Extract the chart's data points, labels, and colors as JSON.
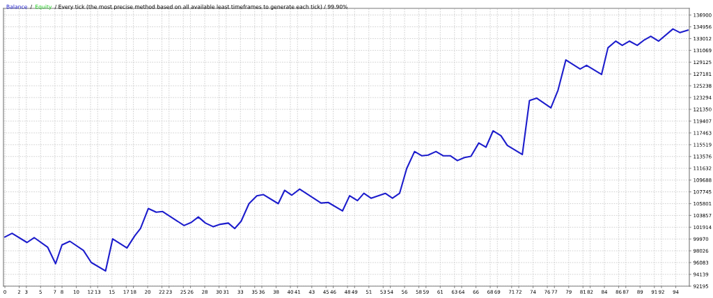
{
  "chart_data": {
    "type": "line",
    "title": "/ Every tick (the most precise method based on all available least timeframes to generate each tick) / 99.90%",
    "annotations": [
      "/"
    ],
    "x": [
      0.0,
      1.0,
      3.1,
      4.1,
      6.0,
      7.1,
      8.0,
      9.1,
      11.0,
      12.1,
      14.1,
      15.1,
      17.1,
      18.2,
      19.0,
      20.1,
      21.2,
      22.1,
      25.1,
      26.1,
      27.1,
      28.1,
      29.2,
      30.2,
      31.3,
      32.2,
      33.1,
      34.2,
      35.3,
      36.2,
      38.3,
      39.2,
      40.2,
      41.3,
      44.3,
      45.3,
      47.3,
      48.3,
      49.4,
      50.3,
      51.3,
      53.3,
      54.3,
      55.3,
      56.3,
      57.4,
      58.4,
      59.3,
      60.4,
      61.4,
      62.4,
      63.4,
      64.4,
      65.3,
      66.4,
      67.4,
      68.4,
      69.5,
      70.4,
      72.5,
      73.5,
      74.5,
      76.5,
      77.5,
      78.6,
      80.6,
      81.5,
      83.6,
      84.5,
      85.6,
      86.5,
      87.5,
      88.6,
      89.6,
      90.5,
      91.6,
      93.6,
      94.6,
      95.7
    ],
    "series": [
      {
        "name": "Balance",
        "color": "#1c1ccc",
        "values": [
          100300,
          100900,
          99400,
          100200,
          98600,
          95900,
          99000,
          99600,
          98100,
          96100,
          94700,
          100000,
          98500,
          100500,
          101700,
          105000,
          104400,
          104500,
          102200,
          102700,
          103600,
          102600,
          102000,
          102400,
          102600,
          101700,
          102900,
          105800,
          107100,
          107300,
          105800,
          108000,
          107200,
          108200,
          105900,
          106000,
          104600,
          107100,
          106300,
          107500,
          106700,
          107500,
          106700,
          107500,
          111600,
          114400,
          113700,
          113800,
          114400,
          113700,
          113700,
          112900,
          113400,
          113600,
          115800,
          115100,
          117800,
          117000,
          115400,
          113900,
          122800,
          123200,
          121600,
          124500,
          129500,
          128000,
          128600,
          127100,
          131500,
          132600,
          131900,
          132600,
          131900,
          132800,
          133400,
          132600,
          134600,
          134000,
          134400
        ]
      },
      {
        "name": "Equity",
        "color": "#22cc22",
        "values": [
          null,
          null,
          null,
          null,
          null,
          null,
          null,
          null,
          null,
          null,
          null,
          null,
          null,
          null,
          null,
          null,
          null,
          null,
          null,
          null,
          null,
          null,
          null,
          null,
          null,
          null,
          null,
          null,
          null,
          null,
          null,
          null,
          null,
          null,
          null,
          null,
          null,
          null,
          null,
          null,
          null,
          null,
          null,
          null,
          null,
          null,
          null,
          null,
          null,
          null,
          null,
          null,
          null,
          null,
          null,
          null,
          null,
          null,
          null,
          null,
          null,
          null,
          null,
          null,
          null,
          null,
          null,
          null,
          null,
          null,
          null,
          null,
          null,
          null,
          null,
          null,
          null,
          null,
          null
        ]
      }
    ],
    "xlim": [
      -0.2,
      95.9
    ],
    "xticks": [
      0,
      2,
      3,
      5,
      7,
      8,
      10,
      12,
      13,
      15,
      17,
      18,
      20,
      22,
      23,
      25,
      26,
      28,
      30,
      31,
      33,
      35,
      36,
      38,
      40,
      41,
      43,
      45,
      46,
      48,
      49,
      51,
      53,
      54,
      56,
      58,
      59,
      61,
      63,
      64,
      66,
      68,
      69,
      71,
      72,
      74,
      76,
      77,
      79,
      81,
      82,
      84,
      86,
      87,
      89,
      91,
      92,
      94
    ],
    "ylim": [
      92195,
      138000
    ],
    "yticks": [
      92195,
      94139,
      96083,
      98026,
      99970,
      101914,
      103857,
      105801,
      107745,
      109688,
      111632,
      113576,
      115519,
      117463,
      119407,
      121350,
      123294,
      125238,
      127181,
      129125,
      131069,
      133012,
      134956,
      136900
    ],
    "grid": true,
    "legend": "top left",
    "line_style": "solid",
    "marker": "none"
  }
}
